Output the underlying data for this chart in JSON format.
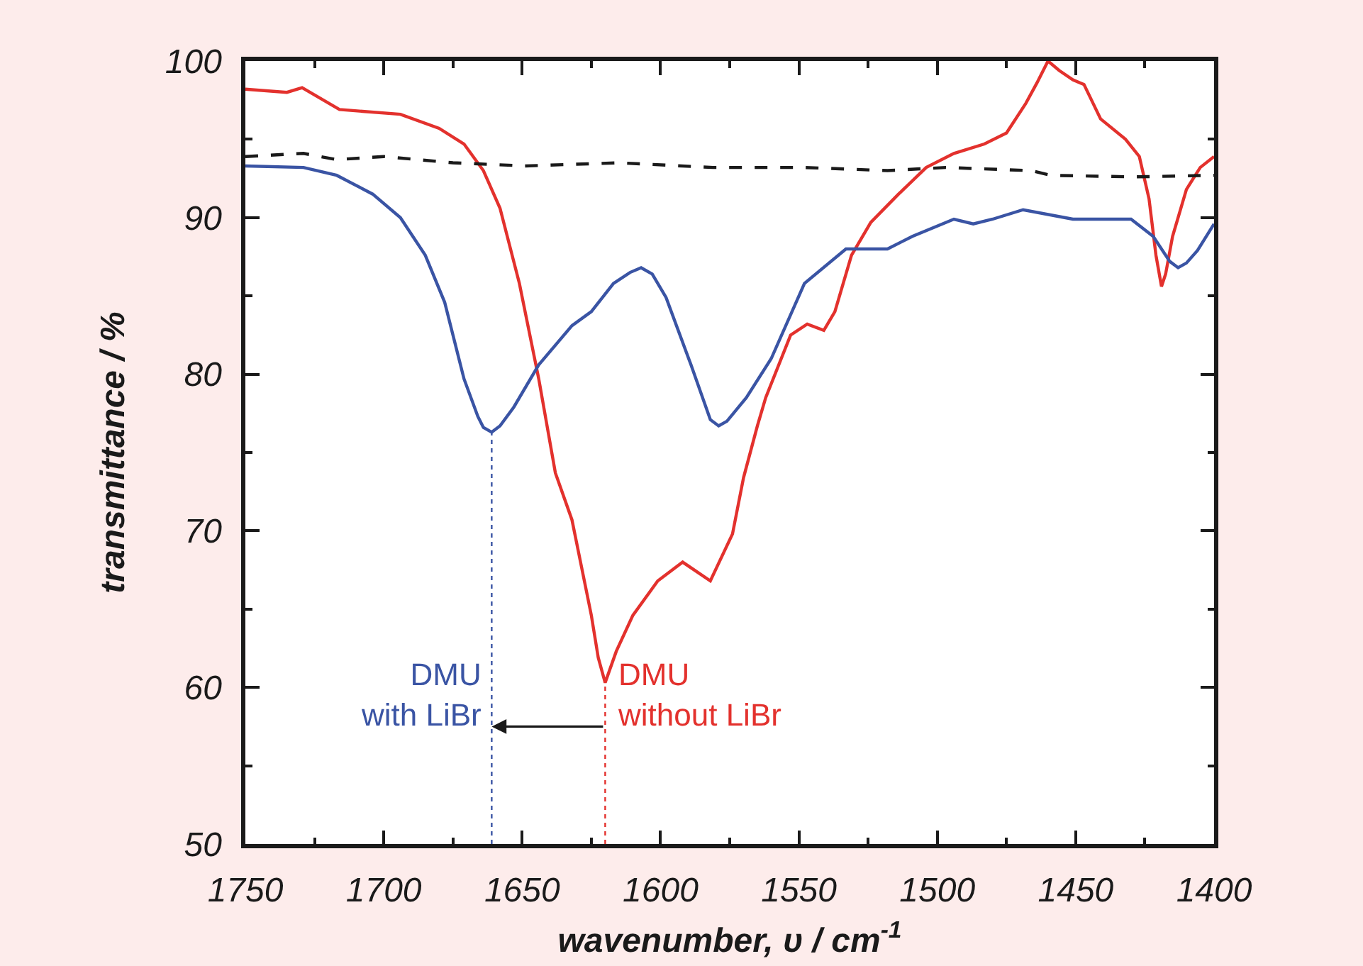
{
  "chart_data": {
    "type": "line",
    "xlabel": "wavenumber, υ / cm$^{-1}$",
    "ylabel": "transmittance / %",
    "xlim": [
      1750,
      1400
    ],
    "xticks": [
      1750,
      {
        "value": 1725,
        "label": null
      },
      1700,
      {
        "value": 1675,
        "label": null
      },
      1650,
      {
        "value": 1625,
        "label": null
      },
      1600,
      {
        "value": 1575,
        "label": null
      },
      1550,
      {
        "value": 1525,
        "label": null
      },
      1500,
      {
        "value": 1475,
        "label": null
      },
      1450,
      {
        "value": 1425,
        "label": null
      },
      1400
    ],
    "ylim": [
      50,
      100
    ],
    "yticks": [
      50,
      {
        "value": 55,
        "label": null
      },
      60,
      {
        "value": 65,
        "label": null
      },
      70,
      {
        "value": 75,
        "label": null
      },
      80,
      {
        "value": 85,
        "label": null
      },
      90,
      {
        "value": 95,
        "label": null
      },
      100
    ],
    "series": [
      {
        "color": "#e3312d",
        "line_style": "solid",
        "x": [
          1750,
          1735,
          1729.5,
          1716,
          1694,
          1680,
          1671,
          1664,
          1658,
          1651,
          1644,
          1638,
          1632,
          1625,
          1622.5,
          1620,
          1616,
          1610,
          1601,
          1592,
          1582,
          1574,
          1570,
          1565,
          1562,
          1553,
          1547,
          1541,
          1537,
          1531,
          1524,
          1514,
          1504,
          1494,
          1483,
          1475,
          1468,
          1464,
          1460,
          1456,
          1451,
          1447,
          1441,
          1432,
          1427,
          1423.5,
          1421,
          1419,
          1417.5,
          1415,
          1410,
          1405,
          1400
        ],
        "values": [
          98.2,
          98.0,
          98.3,
          96.9,
          96.6,
          95.7,
          94.7,
          93.0,
          90.6,
          85.8,
          79.7,
          73.7,
          70.7,
          64.6,
          61.9,
          60.3,
          62.3,
          64.6,
          66.8,
          68.0,
          66.8,
          69.8,
          73.4,
          76.7,
          78.5,
          82.5,
          83.2,
          82.8,
          84.0,
          87.6,
          89.7,
          91.5,
          93.2,
          94.1,
          94.7,
          95.4,
          97.3,
          98.6,
          100,
          99.4,
          98.8,
          98.5,
          96.3,
          95.0,
          93.9,
          91.2,
          87.6,
          85.6,
          86.4,
          88.8,
          91.8,
          93.2,
          93.9
        ]
      },
      {
        "color": "#3a54a4",
        "line_style": "solid",
        "x": [
          1750,
          1729,
          1717,
          1704,
          1694,
          1685,
          1678,
          1671,
          1666,
          1664,
          1661,
          1658,
          1653,
          1644,
          1632,
          1625,
          1617,
          1611,
          1607,
          1603,
          1598,
          1589,
          1582,
          1579,
          1576,
          1569,
          1560,
          1548,
          1533,
          1518,
          1509,
          1494,
          1487,
          1480,
          1469,
          1451,
          1430,
          1422,
          1416,
          1413,
          1410,
          1406,
          1400
        ],
        "values": [
          93.3,
          93.2,
          92.7,
          91.5,
          90.0,
          87.6,
          84.6,
          79.7,
          77.3,
          76.6,
          76.3,
          76.7,
          77.9,
          80.6,
          83.1,
          84.0,
          85.8,
          86.5,
          86.8,
          86.4,
          84.9,
          80.6,
          77.1,
          76.7,
          77.0,
          78.5,
          81.0,
          85.8,
          88.0,
          88.0,
          88.8,
          89.9,
          89.6,
          89.9,
          90.5,
          89.9,
          89.9,
          88.8,
          87.2,
          86.8,
          87.1,
          87.9,
          89.6
        ]
      },
      {
        "color": "#1a1a1a",
        "line_style": "dashed",
        "x": [
          1750,
          1729,
          1717,
          1700,
          1675,
          1649,
          1615,
          1581,
          1548,
          1518,
          1497,
          1466,
          1459,
          1429,
          1400
        ],
        "values": [
          93.9,
          94.1,
          93.7,
          93.9,
          93.5,
          93.3,
          93.5,
          93.2,
          93.2,
          93.0,
          93.2,
          93.0,
          92.7,
          92.6,
          92.7
        ]
      }
    ],
    "ref_lines": [
      {
        "axis": "x",
        "value": 1661,
        "label": "DMU\nwith LiBr",
        "color": "#3a54a4",
        "line_style": "dotted"
      },
      {
        "axis": "x",
        "value": 1620,
        "label": "DMU\nwithout LiBr",
        "color": "#e3312d",
        "line_style": "dotted"
      }
    ]
  }
}
